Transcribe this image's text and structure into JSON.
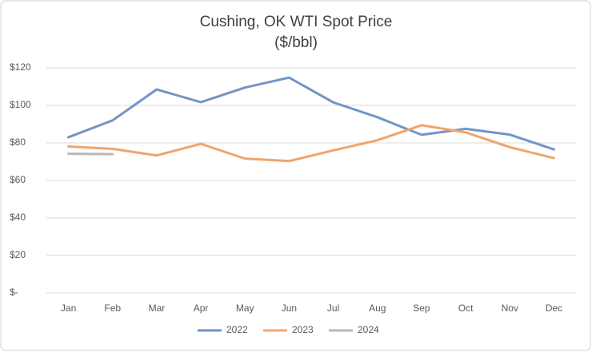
{
  "chart_data": {
    "type": "line",
    "title": "Cushing, OK WTI Spot Price",
    "subtitle": "($/bbl)",
    "categories": [
      "Jan",
      "Feb",
      "Mar",
      "Apr",
      "May",
      "Jun",
      "Jul",
      "Aug",
      "Sep",
      "Oct",
      "Nov",
      "Dec"
    ],
    "series": [
      {
        "name": "2022",
        "color": "#7394c6",
        "values": [
          83,
          92,
          108.5,
          101.7,
          109.5,
          114.8,
          101.6,
          93.7,
          84.3,
          87.5,
          84.4,
          76.5
        ]
      },
      {
        "name": "2023",
        "color": "#f0a46e",
        "values": [
          78.1,
          76.8,
          73.3,
          79.5,
          71.6,
          70.3,
          76,
          81.4,
          89.4,
          85.6,
          77.7,
          71.9
        ]
      },
      {
        "name": "2024",
        "color": "#b8b8b8",
        "values": [
          74.2,
          74,
          null,
          null,
          null,
          null,
          null,
          null,
          null,
          null,
          null,
          null
        ]
      }
    ],
    "ylim": [
      0,
      120
    ],
    "yticks": [
      {
        "value": 0,
        "label": "$-"
      },
      {
        "value": 20,
        "label": "$20"
      },
      {
        "value": 40,
        "label": "$40"
      },
      {
        "value": 60,
        "label": "$60"
      },
      {
        "value": 80,
        "label": "$80"
      },
      {
        "value": 100,
        "label": "$100"
      },
      {
        "value": 120,
        "label": "$120"
      }
    ],
    "grid": true,
    "legend": "bottom"
  }
}
